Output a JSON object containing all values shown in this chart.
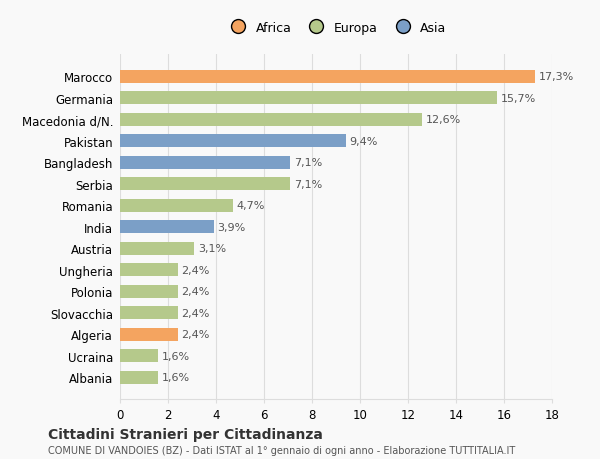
{
  "countries": [
    "Marocco",
    "Germania",
    "Macedonia d/N.",
    "Pakistan",
    "Bangladesh",
    "Serbia",
    "Romania",
    "India",
    "Austria",
    "Ungheria",
    "Polonia",
    "Slovacchia",
    "Algeria",
    "Ucraina",
    "Albania"
  ],
  "values": [
    17.3,
    15.7,
    12.6,
    9.4,
    7.1,
    7.1,
    4.7,
    3.9,
    3.1,
    2.4,
    2.4,
    2.4,
    2.4,
    1.6,
    1.6
  ],
  "labels": [
    "17,3%",
    "15,7%",
    "12,6%",
    "9,4%",
    "7,1%",
    "7,1%",
    "4,7%",
    "3,9%",
    "3,1%",
    "2,4%",
    "2,4%",
    "2,4%",
    "2,4%",
    "1,6%",
    "1,6%"
  ],
  "continents": [
    "Africa",
    "Europa",
    "Europa",
    "Asia",
    "Asia",
    "Europa",
    "Europa",
    "Asia",
    "Europa",
    "Europa",
    "Europa",
    "Europa",
    "Africa",
    "Europa",
    "Europa"
  ],
  "colors": {
    "Africa": "#F4A460",
    "Europa": "#B5C98B",
    "Asia": "#7B9FC7"
  },
  "legend_order": [
    "Africa",
    "Europa",
    "Asia"
  ],
  "xlim": [
    0,
    18
  ],
  "xticks": [
    0,
    2,
    4,
    6,
    8,
    10,
    12,
    14,
    16,
    18
  ],
  "title": "Cittadini Stranieri per Cittadinanza",
  "subtitle": "COMUNE DI VANDOIES (BZ) - Dati ISTAT al 1° gennaio di ogni anno - Elaborazione TUTTITALIA.IT",
  "bg_color": "#f9f9f9",
  "grid_color": "#dddddd"
}
